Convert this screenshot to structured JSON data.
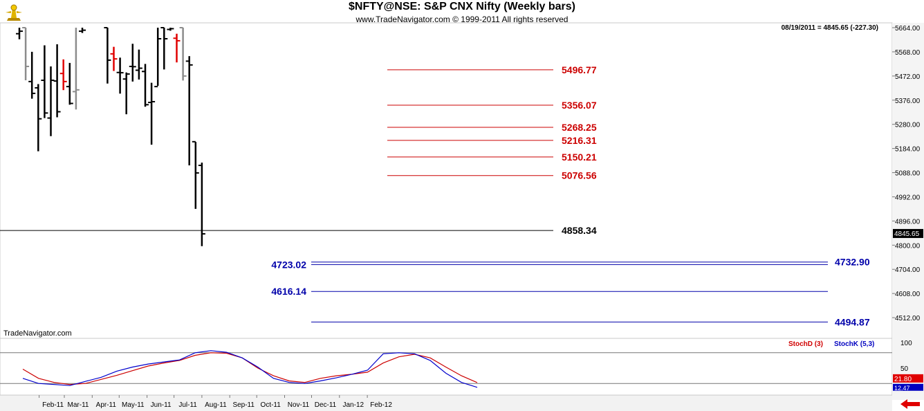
{
  "header": {
    "title": "$NFTY@NSE:  S&P CNX Nifty  (Weekly bars)",
    "subtitle": "www.TradeNavigator.com © 1999-2011 All rights reserved",
    "readout": "08/19/2011 = 4845.65 (-227.30)"
  },
  "watermark": "TradeNavigator.com",
  "icons": {
    "logo": "trade-navigator-logo",
    "nav": "red-left-arrow"
  },
  "colors": {
    "bar": "#000000",
    "bar_gray": "#8c8c8c",
    "bar_red": "#e00000",
    "bar_green": "#00d000",
    "resistance": "#cc0000",
    "support": "#0000aa",
    "stoch_d": "#cc0000",
    "stoch_k": "#0000cc"
  },
  "chart_data": [
    {
      "type": "ohlc",
      "title": "$NFTY@NSE:  S&P CNX Nifty  (Weekly bars)",
      "y_ticks": [
        "5664.00",
        "5568.00",
        "5472.00",
        "5376.00",
        "5280.00",
        "5184.00",
        "5088.00",
        "4992.00",
        "4896.00",
        "4800.00",
        "4704.00",
        "4608.00",
        "4512.00"
      ],
      "ylim": [
        4470,
        5664
      ],
      "x_labels": [
        "Feb-11",
        "Mar-11",
        "Apr-11",
        "May-11",
        "Jun-11",
        "Jul-11",
        "Aug-11",
        "Sep-11",
        "Oct-11",
        "Nov-11",
        "Dec-11",
        "Jan-12",
        "Feb-12"
      ],
      "last_price_label": "4845.65",
      "bars": [
        {
          "date": "2011-01-10",
          "high": 5664,
          "low": 5618,
          "open": 5640,
          "close": 5650,
          "color": "black"
        },
        {
          "date": "2011-01-17",
          "high": 5664,
          "low": 5455,
          "open": 5664,
          "close": 5510,
          "color": "gray"
        },
        {
          "date": "2011-01-24",
          "high": 5568,
          "low": 5382,
          "open": 5450,
          "close": 5403,
          "color": "black"
        },
        {
          "date": "2011-01-31",
          "high": 5440,
          "low": 5173,
          "open": 5425,
          "close": 5302,
          "color": "black"
        },
        {
          "date": "2011-02-07",
          "high": 5594,
          "low": 5305,
          "open": 5455,
          "close": 5325,
          "color": "black"
        },
        {
          "date": "2011-02-14",
          "high": 5510,
          "low": 5233,
          "open": 5305,
          "close": 5455,
          "color": "black"
        },
        {
          "date": "2011-02-21",
          "high": 5598,
          "low": 5308,
          "open": 5452,
          "close": 5330,
          "color": "black"
        },
        {
          "date": "2011-02-28",
          "high": 5538,
          "low": 5416,
          "open": 5482,
          "close": 5450,
          "color": "red"
        },
        {
          "date": "2011-03-07",
          "high": 5524,
          "low": 5358,
          "open": 5430,
          "close": 5363,
          "color": "black"
        },
        {
          "date": "2011-03-14",
          "high": 5664,
          "low": 5339,
          "open": 5410,
          "close": 5417,
          "color": "gray"
        },
        {
          "date": "2011-03-21",
          "high": 5664,
          "low": 5643,
          "open": 5650,
          "close": 5654,
          "color": "black"
        },
        {
          "date": "2011-04-18",
          "high": 5664,
          "low": 5442,
          "open": 5664,
          "close": 5535,
          "color": "black"
        },
        {
          "date": "2011-04-25",
          "high": 5588,
          "low": 5492,
          "open": 5560,
          "close": 5540,
          "color": "red"
        },
        {
          "date": "2011-05-02",
          "high": 5545,
          "low": 5402,
          "open": 5486,
          "close": 5485,
          "color": "black"
        },
        {
          "date": "2011-05-09",
          "high": 5486,
          "low": 5320,
          "open": 5460,
          "close": 5480,
          "color": "black"
        },
        {
          "date": "2011-05-16",
          "high": 5600,
          "low": 5450,
          "open": 5510,
          "close": 5509,
          "color": "black"
        },
        {
          "date": "2011-05-23",
          "high": 5577,
          "low": 5458,
          "open": 5495,
          "close": 5503,
          "color": "black"
        },
        {
          "date": "2011-05-30",
          "high": 5520,
          "low": 5350,
          "open": 5490,
          "close": 5358,
          "color": "black"
        },
        {
          "date": "2011-06-06",
          "high": 5445,
          "low": 5199,
          "open": 5367,
          "close": 5370,
          "color": "black"
        },
        {
          "date": "2011-06-13",
          "high": 5664,
          "low": 5433,
          "open": 5430,
          "close": 5620,
          "color": "black"
        },
        {
          "date": "2011-06-20",
          "high": 5664,
          "low": 5498,
          "open": 5664,
          "close": 5620,
          "color": "black"
        },
        {
          "date": "2011-06-27",
          "high": 5664,
          "low": 5652,
          "open": 5657,
          "close": 5660,
          "color": "black"
        },
        {
          "date": "2011-07-04",
          "high": 5640,
          "low": 5526,
          "open": 5622,
          "close": 5612,
          "color": "red"
        },
        {
          "date": "2011-07-11",
          "high": 5664,
          "low": 5454,
          "open": 5664,
          "close": 5472,
          "color": "gray"
        },
        {
          "date": "2011-07-18",
          "high": 5551,
          "low": 5117,
          "open": 5531,
          "close": 5516,
          "color": "black"
        },
        {
          "date": "2011-07-25",
          "high": 5210,
          "low": 4944,
          "open": 5211,
          "close": 5087,
          "color": "black"
        },
        {
          "date": "2011-08-01",
          "high": 5128,
          "low": 4796,
          "open": 5117,
          "close": 4845,
          "color": "black"
        }
      ],
      "resistance_levels": [
        "5496.77",
        "5356.07",
        "5268.25",
        "5216.31",
        "5150.21",
        "5076.56"
      ],
      "current_level": "4858.34",
      "support_levels": {
        "left": [
          "4723.02",
          "4616.14"
        ],
        "right": [
          "4732.90",
          "4494.87"
        ]
      },
      "support_values": [
        4732.9,
        4723.02,
        4616.14,
        4494.87
      ]
    },
    {
      "type": "line",
      "title": "",
      "y_ticks": [
        "100",
        "50",
        "21.80",
        "12.47"
      ],
      "ylim": [
        0,
        100
      ],
      "reference_lines": [
        80,
        20
      ],
      "series": [
        {
          "name": "StochD (3)",
          "values": [
            48,
            30,
            22,
            18,
            20,
            28,
            36,
            45,
            54,
            60,
            65,
            75,
            80,
            79,
            70,
            50,
            35,
            25,
            22,
            30,
            35,
            38,
            42,
            60,
            72,
            77,
            70,
            52,
            35,
            21.8
          ]
        },
        {
          "name": "StochK (5,3)",
          "values": [
            30,
            20,
            18,
            16,
            24,
            32,
            44,
            52,
            58,
            62,
            66,
            80,
            84,
            81,
            70,
            52,
            30,
            22,
            20,
            25,
            31,
            38,
            46,
            78,
            80,
            78,
            65,
            40,
            22,
            12.47
          ]
        }
      ]
    }
  ]
}
